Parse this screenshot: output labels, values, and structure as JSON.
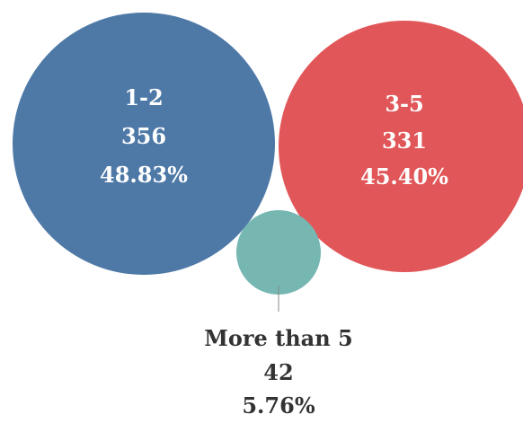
{
  "chart_data": {
    "type": "bubble",
    "legend": "none",
    "grid": false,
    "items": [
      {
        "category": "1-2",
        "count": 356,
        "percent": "48.83%",
        "color": "#4e79a7"
      },
      {
        "category": "3-5",
        "count": 331,
        "percent": "45.40%",
        "color": "#e15759"
      },
      {
        "category": "More than 5",
        "count": 42,
        "percent": "5.76%",
        "color": "#76b7b2"
      }
    ]
  }
}
